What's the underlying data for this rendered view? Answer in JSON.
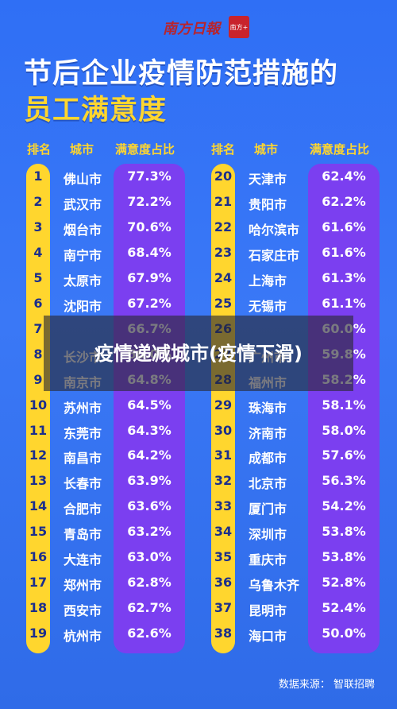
{
  "masthead": "南方日報",
  "seal": "南方+",
  "title_line1": "节后企业疫情防范措施的",
  "title_line2": "员工满意度",
  "headers": {
    "rank": "排名",
    "city": "城市",
    "pct": "满意度占比"
  },
  "overlay_title": "疫情递减城市(疫情下滑)",
  "source": "数据来源：  智联招聘",
  "colors": {
    "background": "#3a78f6",
    "accent_yellow": "#ffd62e",
    "accent_purple": "#7b3ff0"
  },
  "chart_data": {
    "type": "table",
    "title": "节后企业疫情防范措施的员工满意度",
    "columns": [
      "排名",
      "城市",
      "满意度占比"
    ],
    "rows": [
      [
        "1",
        "佛山市",
        "77.3%"
      ],
      [
        "2",
        "武汉市",
        "72.2%"
      ],
      [
        "3",
        "烟台市",
        "70.6%"
      ],
      [
        "4",
        "南宁市",
        "68.4%"
      ],
      [
        "5",
        "太原市",
        "67.9%"
      ],
      [
        "6",
        "沈阳市",
        "67.2%"
      ],
      [
        "7",
        "",
        "66.7%"
      ],
      [
        "8",
        "长沙市",
        "66.0%"
      ],
      [
        "9",
        "南京市",
        "64.8%"
      ],
      [
        "10",
        "苏州市",
        "64.5%"
      ],
      [
        "11",
        "东莞市",
        "64.3%"
      ],
      [
        "12",
        "南昌市",
        "64.2%"
      ],
      [
        "13",
        "长春市",
        "63.9%"
      ],
      [
        "14",
        "合肥市",
        "63.6%"
      ],
      [
        "15",
        "青岛市",
        "63.2%"
      ],
      [
        "16",
        "大连市",
        "63.0%"
      ],
      [
        "17",
        "郑州市",
        "62.8%"
      ],
      [
        "18",
        "西安市",
        "62.7%"
      ],
      [
        "19",
        "杭州市",
        "62.6%"
      ],
      [
        "20",
        "天津市",
        "62.4%"
      ],
      [
        "21",
        "贵阳市",
        "62.2%"
      ],
      [
        "22",
        "哈尔滨市",
        "61.6%"
      ],
      [
        "23",
        "石家庄市",
        "61.6%"
      ],
      [
        "24",
        "上海市",
        "61.3%"
      ],
      [
        "25",
        "无锡市",
        "61.1%"
      ],
      [
        "26",
        "",
        "60.0%"
      ],
      [
        "27",
        "广州市",
        "59.8%"
      ],
      [
        "28",
        "福州市",
        "58.2%"
      ],
      [
        "29",
        "珠海市",
        "58.1%"
      ],
      [
        "30",
        "济南市",
        "58.0%"
      ],
      [
        "31",
        "成都市",
        "57.6%"
      ],
      [
        "32",
        "北京市",
        "56.3%"
      ],
      [
        "33",
        "厦门市",
        "54.2%"
      ],
      [
        "34",
        "深圳市",
        "53.8%"
      ],
      [
        "35",
        "重庆市",
        "53.8%"
      ],
      [
        "36",
        "乌鲁木齐",
        "52.8%"
      ],
      [
        "37",
        "昆明市",
        "52.4%"
      ],
      [
        "38",
        "海口市",
        "50.0%"
      ]
    ]
  }
}
